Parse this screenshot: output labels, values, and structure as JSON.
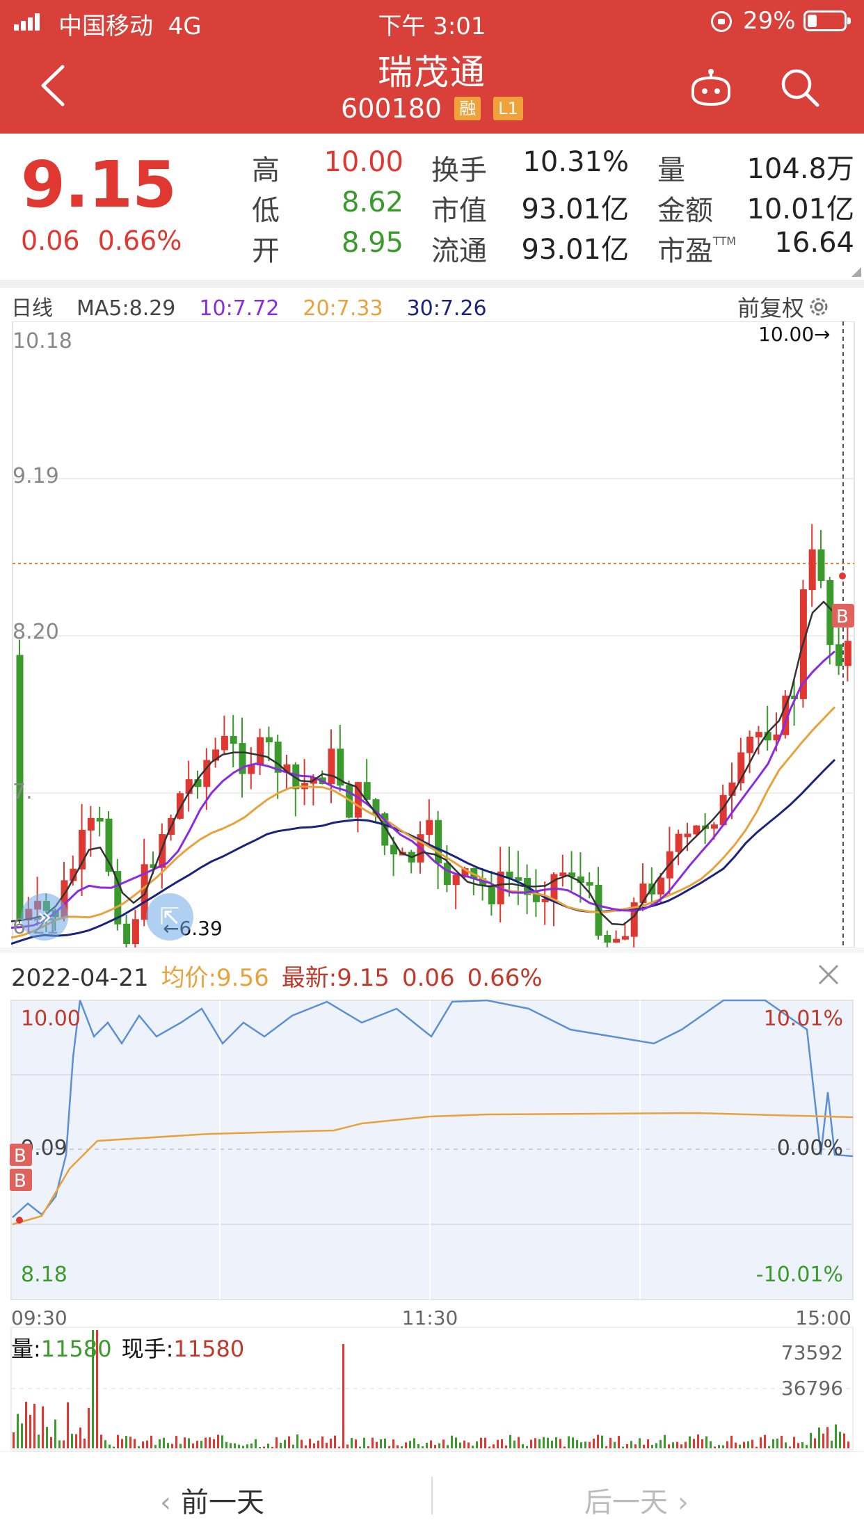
{
  "status_bar": {
    "carrier": "中国移动",
    "network": "4G",
    "time": "下午 3:01",
    "battery": "29%",
    "battery_level": 0.29
  },
  "header": {
    "name": "瑞茂通",
    "code": "600180",
    "badge_margin": "融",
    "badge_level": "L1",
    "icons": {
      "back": "chevron-left-icon",
      "robot": "robot-icon",
      "search": "search-icon"
    }
  },
  "quote": {
    "price": "9.15",
    "change": "0.06",
    "change_pct": "0.66%",
    "high_label": "高",
    "high": "10.00",
    "low_label": "低",
    "low": "8.62",
    "open_label": "开",
    "open": "8.95",
    "turnover_label": "换手",
    "turnover": "10.31%",
    "mktcap_label": "市值",
    "mktcap": "93.01亿",
    "float_label": "流通",
    "float": "93.01亿",
    "volume_label": "量",
    "volume": "104.8万",
    "amount_label": "金额",
    "amount": "10.01亿",
    "pe_label": "市盈",
    "pe_sup": "TTM",
    "pe": "16.64"
  },
  "kline": {
    "period": "日线",
    "ma5": "MA5:8.29",
    "ma10": "10:7.72",
    "ma20": "20:7.33",
    "ma30": "30:7.26",
    "adjust": "前复权",
    "y_top": "10.18",
    "y_mid1": "9.19",
    "y_mid2": "8.20",
    "y_mid3": "7.",
    "y_bottom": "6.21",
    "high_marker": "10.00→",
    "low_marker": "←6.39",
    "buy_marker": "B",
    "colors": {
      "up": "#e03730",
      "down": "#3a9a2c",
      "ma5": "#333333",
      "ma10": "#8a2be2",
      "ma20": "#e8a23a",
      "ma30": "#1a237e"
    }
  },
  "intraday": {
    "date": "2022-04-21",
    "avg_label": "均价:9.56",
    "last_label": "最新:9.15",
    "change": "0.06",
    "change_pct": "0.66%",
    "price_top": "10.00",
    "price_mid": "9.09",
    "price_bottom": "8.18",
    "pct_top": "10.01%",
    "pct_mid": "0.00%",
    "pct_bottom": "-10.01%",
    "time_start": "09:30",
    "time_mid": "11:30",
    "time_end": "15:00",
    "vol_label": "量:",
    "vol_value": "11580",
    "hand_label": "现手:",
    "hand_value": "11580",
    "vol_max": "73592",
    "vol_half": "36796",
    "buy_marker": "B"
  },
  "bottom_nav": {
    "prev": "前一天",
    "next": "后一天"
  }
}
